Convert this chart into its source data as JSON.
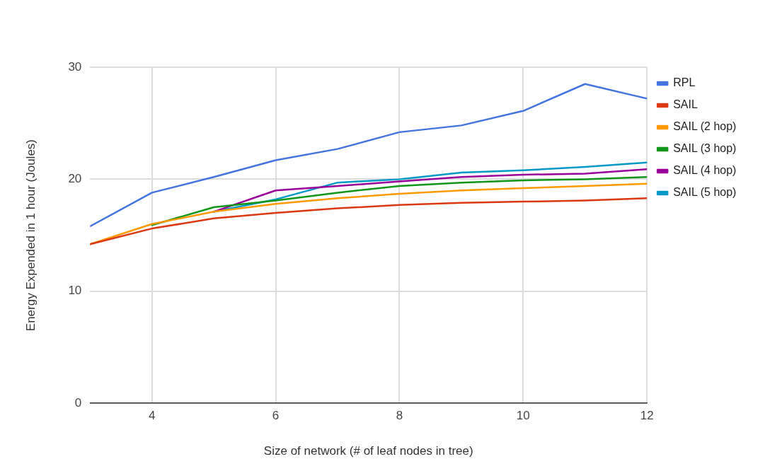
{
  "chart_data": {
    "type": "line",
    "xlabel": "Size of network (# of leaf nodes in tree)",
    "ylabel": "Energy Expended in 1 hour (Joules)",
    "x": [
      3,
      4,
      5,
      6,
      7,
      8,
      9,
      10,
      11,
      12
    ],
    "xlim": [
      3,
      12
    ],
    "xticks": [
      4,
      6,
      8,
      10,
      12
    ],
    "ylim": [
      0,
      30
    ],
    "yticks": [
      0,
      10,
      20,
      30
    ],
    "grid": true,
    "legend": "right",
    "marker": "none",
    "line_style": "solid",
    "series": [
      {
        "name": "RPL",
        "color": "#4374e0",
        "values": [
          15.8,
          18.8,
          20.2,
          21.7,
          22.7,
          24.2,
          24.8,
          26.1,
          28.5,
          27.2
        ]
      },
      {
        "name": "SAIL",
        "color": "#dc3912",
        "values": [
          14.2,
          15.6,
          16.5,
          17.0,
          17.4,
          17.7,
          17.9,
          18.0,
          18.1,
          18.3
        ]
      },
      {
        "name": "SAIL (2 hop)",
        "color": "#ff9900",
        "values": [
          14.2,
          16.0,
          17.1,
          17.8,
          18.3,
          18.7,
          19.0,
          19.2,
          19.4,
          19.6
        ]
      },
      {
        "name": "SAIL (3 hop)",
        "color": "#109618",
        "values": [
          null,
          15.9,
          17.5,
          18.1,
          18.8,
          19.4,
          19.7,
          19.9,
          20.0,
          20.2
        ]
      },
      {
        "name": "SAIL (4 hop)",
        "color": "#990099",
        "values": [
          null,
          null,
          17.1,
          19.0,
          19.4,
          19.8,
          20.2,
          20.4,
          20.5,
          20.9
        ]
      },
      {
        "name": "SAIL (5 hop)",
        "color": "#0099c6",
        "values": [
          null,
          null,
          17.1,
          18.2,
          19.7,
          20.0,
          20.6,
          20.8,
          21.1,
          21.5
        ]
      }
    ]
  }
}
